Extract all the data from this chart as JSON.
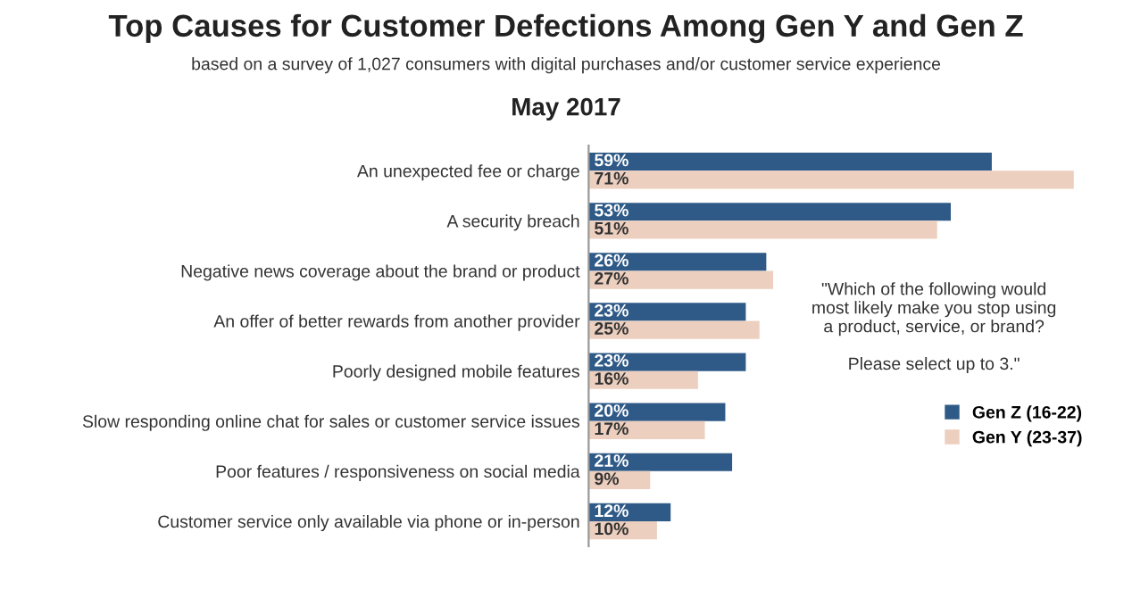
{
  "chart_data": {
    "type": "bar",
    "orientation": "horizontal",
    "title": "Top Causes for Customer Defections Among Gen Y and Gen Z",
    "subtitle": "based on a survey of 1,027 consumers with digital purchases and/or customer service experience",
    "categories": [
      "An unexpected fee or charge",
      "A security breach",
      "Negative news coverage about the brand or product",
      "An offer of better rewards from another provider",
      "Poorly designed mobile features",
      "Slow responding online chat for sales or customer service issues",
      "Poor features / responsiveness on social media",
      "Customer service only available via phone or in-person"
    ],
    "series": [
      {
        "name": "Gen Z (16-22)",
        "color": "#2f5a87",
        "values": [
          59,
          53,
          26,
          23,
          23,
          20,
          21,
          12
        ],
        "value_labels": [
          "59%",
          "53%",
          "26%",
          "23%",
          "23%",
          "20%",
          "21%",
          "12%"
        ]
      },
      {
        "name": "Gen Y (23-37)",
        "color": "#eccfbf",
        "values": [
          71,
          51,
          27,
          25,
          16,
          17,
          9,
          10
        ],
        "value_labels": [
          "71%",
          "51%",
          "27%",
          "25%",
          "16%",
          "17%",
          "9%",
          "10%"
        ]
      }
    ],
    "annotations": [
      "May 2017",
      "\"Which of the following would\nmost likely make you stop using\na product, service, or brand?\n\nPlease select up to 3.\""
    ],
    "legend": "right",
    "grid": false
  }
}
